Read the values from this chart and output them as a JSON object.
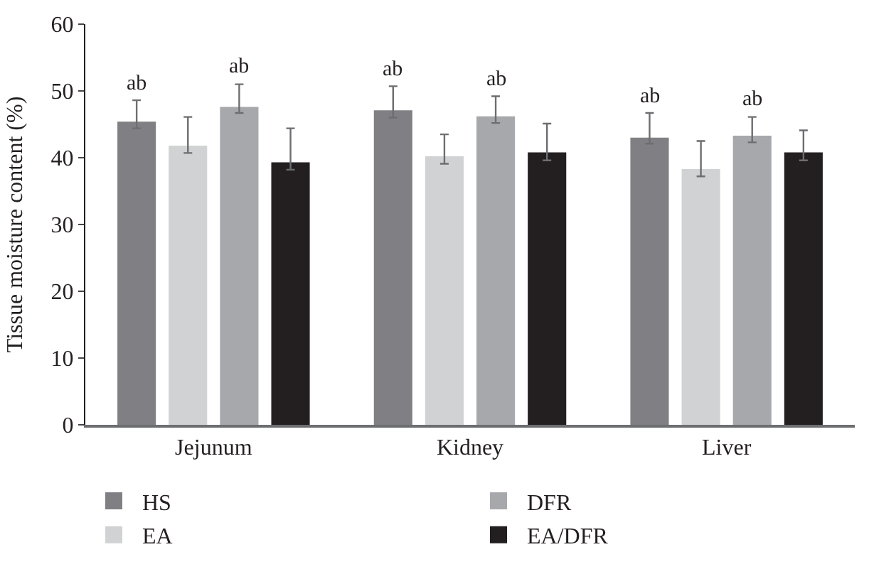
{
  "chart_data": {
    "type": "bar",
    "ylabel": "Tissue moisture content (%)",
    "categories": [
      "Jejunum",
      "Kidney",
      "Liver"
    ],
    "series": [
      {
        "name": "HS",
        "color": "#808084",
        "values": [
          45.4,
          47.1,
          43.0
        ],
        "errors": [
          [
            44.4,
            48.6
          ],
          [
            46.0,
            50.7
          ],
          [
            42.1,
            46.7
          ]
        ],
        "value_labels": [
          "ab",
          "ab",
          "ab"
        ]
      },
      {
        "name": "EA",
        "color": "#d1d2d4",
        "values": [
          41.8,
          40.2,
          38.3
        ],
        "errors": [
          [
            40.7,
            46.1
          ],
          [
            39.1,
            43.5
          ],
          [
            37.2,
            42.5
          ]
        ]
      },
      {
        "name": "DFR",
        "color": "#a7a8ab",
        "values": [
          47.6,
          46.2,
          43.3
        ],
        "errors": [
          [
            46.7,
            51.0
          ],
          [
            45.2,
            49.2
          ],
          [
            42.3,
            46.1
          ]
        ],
        "value_labels": [
          "ab",
          "ab",
          "ab"
        ]
      },
      {
        "name": "EA/DFR",
        "color": "#231f20",
        "values": [
          39.3,
          40.8,
          40.8
        ],
        "errors": [
          [
            38.2,
            44.4
          ],
          [
            39.6,
            45.1
          ],
          [
            39.6,
            44.1
          ]
        ]
      }
    ],
    "ylim": [
      0,
      60
    ],
    "yticks": [
      0,
      10,
      20,
      30,
      40,
      50,
      60
    ],
    "legend": "bottom"
  }
}
